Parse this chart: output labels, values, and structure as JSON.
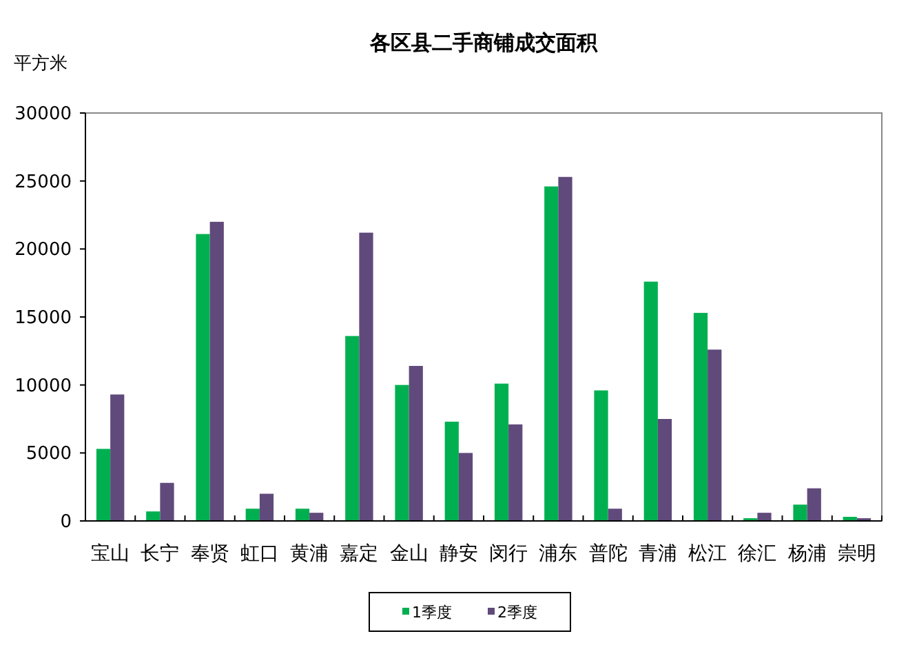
{
  "chart_data": {
    "type": "bar",
    "title": "各区县二手商铺成交面积",
    "ylabel": "平方米",
    "categories": [
      "宝山",
      "长宁",
      "奉贤",
      "虹口",
      "黄浦",
      "嘉定",
      "金山",
      "静安",
      "闵行",
      "浦东",
      "普陀",
      "青浦",
      "松江",
      "徐汇",
      "杨浦",
      "崇明"
    ],
    "series": [
      {
        "name": "1季度",
        "color": "#00b050",
        "values": [
          5300,
          700,
          21100,
          900,
          900,
          13600,
          10000,
          7300,
          10100,
          24600,
          9600,
          17600,
          15300,
          200,
          1200,
          300
        ]
      },
      {
        "name": "2季度",
        "color": "#604a7b",
        "values": [
          9300,
          2800,
          22000,
          2000,
          600,
          21200,
          11400,
          5000,
          7100,
          25300,
          900,
          7500,
          12600,
          600,
          2400,
          200
        ]
      }
    ],
    "ylim": [
      0,
      30000
    ],
    "yticks": [
      0,
      5000,
      10000,
      15000,
      20000,
      25000,
      30000
    ],
    "grid": false,
    "legend": "bottom"
  }
}
